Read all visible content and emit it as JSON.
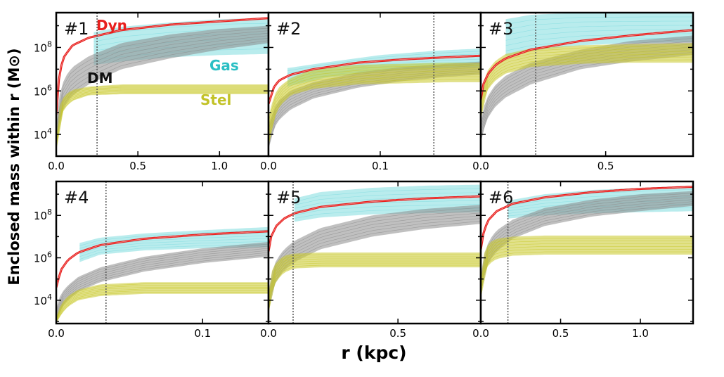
{
  "figure": {
    "ylabel": "Enclosed mass within r (M⊙)",
    "xlabel": "r (kpc)"
  },
  "colors": {
    "dyn": "#e8201e",
    "gas": "#7fdcdf",
    "dm": "#8c8c8c",
    "stel": "#c9c92a",
    "frame": "#000000"
  },
  "legend_labels": {
    "dyn": "Dyn",
    "dm": "DM",
    "gas": "Gas",
    "stel": "Stel"
  },
  "chart_data": [
    {
      "type": "area",
      "label": "#1",
      "log_y": true,
      "xlim": [
        0,
        1.3
      ],
      "ylim": [
        3.0,
        9.6
      ],
      "xticks": [
        0.0,
        0.5,
        1.0
      ],
      "xtick_labels": [
        "0.0",
        "0.5",
        "1.0"
      ],
      "yticks": [
        4,
        6,
        8
      ],
      "ytick_labels": [
        "10^4",
        "10^6",
        "10^8"
      ],
      "vline": 0.25,
      "series": [
        {
          "name": "Dyn",
          "kind": "line",
          "r": [
            0.0,
            0.02,
            0.05,
            0.1,
            0.2,
            0.4,
            0.7,
            1.0,
            1.3
          ],
          "log_m": [
            4.9,
            6.9,
            7.6,
            8.1,
            8.45,
            8.8,
            9.05,
            9.2,
            9.35
          ]
        },
        {
          "name": "Gas",
          "kind": "band",
          "r": [
            0.23,
            0.4,
            0.7,
            1.0,
            1.3
          ],
          "log_lo": [
            7.2,
            7.35,
            7.55,
            7.65,
            7.7
          ],
          "log_hi": [
            8.7,
            8.95,
            9.15,
            9.3,
            9.35
          ]
        },
        {
          "name": "DM",
          "kind": "band",
          "r": [
            0.0,
            0.02,
            0.05,
            0.1,
            0.2,
            0.4,
            0.7,
            1.0,
            1.3
          ],
          "log_lo": [
            3.4,
            4.6,
            5.3,
            5.8,
            6.3,
            7.0,
            7.5,
            7.9,
            8.2
          ],
          "log_hi": [
            4.5,
            5.8,
            6.6,
            7.1,
            7.6,
            8.2,
            8.6,
            8.85,
            9.0
          ]
        },
        {
          "name": "Stel",
          "kind": "band",
          "r": [
            0.0,
            0.02,
            0.05,
            0.1,
            0.2,
            0.4,
            0.7,
            1.0,
            1.3
          ],
          "log_lo": [
            3.2,
            4.6,
            5.2,
            5.55,
            5.8,
            5.85,
            5.85,
            5.85,
            5.85
          ],
          "log_hi": [
            3.8,
            5.3,
            5.8,
            6.05,
            6.2,
            6.3,
            6.3,
            6.3,
            6.3
          ]
        }
      ]
    },
    {
      "type": "area",
      "label": "#2",
      "log_y": true,
      "xlim": [
        0,
        0.19
      ],
      "ylim": [
        3.0,
        9.6
      ],
      "xticks": [
        0.0,
        0.1
      ],
      "xtick_labels": [
        "0.0",
        "0.1"
      ],
      "yticks": [
        4,
        6,
        8
      ],
      "ytick_labels": [
        "",
        "",
        ""
      ],
      "vline": 0.148,
      "series": [
        {
          "name": "Dyn",
          "kind": "line",
          "r": [
            0.0,
            0.005,
            0.01,
            0.02,
            0.04,
            0.08,
            0.12,
            0.16,
            0.19
          ],
          "log_m": [
            5.4,
            6.2,
            6.5,
            6.75,
            7.0,
            7.3,
            7.45,
            7.55,
            7.62
          ]
        },
        {
          "name": "Gas",
          "kind": "band",
          "r": [
            0.017,
            0.05,
            0.1,
            0.15,
            0.19
          ],
          "log_lo": [
            6.2,
            6.6,
            6.9,
            7.05,
            7.1
          ],
          "log_hi": [
            7.05,
            7.3,
            7.65,
            7.85,
            7.95
          ]
        },
        {
          "name": "DM",
          "kind": "band",
          "r": [
            0.0,
            0.005,
            0.01,
            0.02,
            0.04,
            0.08,
            0.12,
            0.16,
            0.19
          ],
          "log_lo": [
            3.3,
            4.3,
            4.7,
            5.15,
            5.65,
            6.15,
            6.45,
            6.65,
            6.75
          ],
          "log_hi": [
            4.4,
            5.2,
            5.6,
            6.0,
            6.4,
            6.85,
            7.1,
            7.25,
            7.35
          ]
        },
        {
          "name": "Stel",
          "kind": "band",
          "r": [
            0.0,
            0.005,
            0.01,
            0.02,
            0.04,
            0.08,
            0.12,
            0.16,
            0.19
          ],
          "log_lo": [
            3.4,
            4.7,
            5.3,
            5.8,
            6.1,
            6.3,
            6.35,
            6.4,
            6.4
          ],
          "log_hi": [
            4.8,
            5.8,
            6.2,
            6.6,
            7.0,
            7.2,
            7.25,
            7.3,
            7.3
          ]
        }
      ]
    },
    {
      "type": "area",
      "label": "#3",
      "log_y": true,
      "xlim": [
        0,
        0.85
      ],
      "ylim": [
        3.0,
        9.6
      ],
      "xticks": [
        0.0,
        0.5
      ],
      "xtick_labels": [
        "0.0",
        "0.5"
      ],
      "yticks": [
        4,
        6,
        8
      ],
      "ytick_labels": [
        "",
        "",
        ""
      ],
      "vline": 0.22,
      "series": [
        {
          "name": "Dyn",
          "kind": "line",
          "r": [
            0.0,
            0.01,
            0.03,
            0.06,
            0.1,
            0.2,
            0.4,
            0.6,
            0.85
          ],
          "log_m": [
            5.6,
            6.3,
            6.8,
            7.2,
            7.5,
            7.9,
            8.3,
            8.55,
            8.8
          ]
        },
        {
          "name": "Gas",
          "kind": "band",
          "r": [
            0.1,
            0.2,
            0.4,
            0.6,
            0.85
          ],
          "log_lo": [
            7.6,
            7.85,
            8.1,
            8.2,
            8.25
          ],
          "log_hi": [
            9.3,
            9.5,
            9.6,
            9.6,
            9.6
          ]
        },
        {
          "name": "DM",
          "kind": "band",
          "r": [
            0.0,
            0.01,
            0.03,
            0.06,
            0.1,
            0.2,
            0.4,
            0.6,
            0.85
          ],
          "log_lo": [
            3.6,
            4.2,
            4.8,
            5.3,
            5.7,
            6.3,
            7.0,
            7.35,
            7.65
          ],
          "log_hi": [
            4.6,
            5.2,
            5.8,
            6.3,
            6.7,
            7.3,
            7.9,
            8.3,
            8.55
          ]
        },
        {
          "name": "Stel",
          "kind": "band",
          "r": [
            0.0,
            0.01,
            0.03,
            0.06,
            0.1,
            0.2,
            0.4,
            0.6,
            0.85
          ],
          "log_lo": [
            4.6,
            5.5,
            6.1,
            6.5,
            6.8,
            7.1,
            7.25,
            7.3,
            7.3
          ],
          "log_hi": [
            5.6,
            6.4,
            7.0,
            7.4,
            7.7,
            7.95,
            8.1,
            8.15,
            8.2
          ]
        }
      ]
    },
    {
      "type": "area",
      "label": "#4",
      "log_y": true,
      "xlim": [
        0,
        0.145
      ],
      "ylim": [
        2.9,
        9.6
      ],
      "xticks": [
        0.0,
        0.1
      ],
      "xtick_labels": [
        "0.0",
        "0.1"
      ],
      "yticks": [
        4,
        6,
        8
      ],
      "ytick_labels": [
        "10^4",
        "10^6",
        "10^8"
      ],
      "vline": 0.034,
      "series": [
        {
          "name": "Dyn",
          "kind": "line",
          "r": [
            0.0,
            0.003,
            0.008,
            0.015,
            0.03,
            0.06,
            0.1,
            0.145
          ],
          "log_m": [
            4.6,
            5.4,
            5.9,
            6.25,
            6.6,
            6.9,
            7.1,
            7.25
          ]
        },
        {
          "name": "Gas",
          "kind": "band",
          "r": [
            0.016,
            0.03,
            0.06,
            0.1,
            0.145
          ],
          "log_lo": [
            5.8,
            6.15,
            6.35,
            6.45,
            6.5
          ],
          "log_hi": [
            6.7,
            6.95,
            7.15,
            7.3,
            7.45
          ]
        },
        {
          "name": "DM",
          "kind": "band",
          "r": [
            0.0,
            0.003,
            0.008,
            0.015,
            0.03,
            0.06,
            0.1,
            0.145
          ],
          "log_lo": [
            2.9,
            3.6,
            4.0,
            4.4,
            4.85,
            5.35,
            5.75,
            6.05
          ],
          "log_hi": [
            3.6,
            4.3,
            4.7,
            5.1,
            5.55,
            6.05,
            6.45,
            6.75
          ]
        },
        {
          "name": "Stel",
          "kind": "band",
          "r": [
            0.0,
            0.003,
            0.008,
            0.015,
            0.03,
            0.06,
            0.1,
            0.145
          ],
          "log_lo": [
            2.9,
            3.3,
            3.7,
            4.0,
            4.2,
            4.3,
            4.3,
            4.3
          ],
          "log_hi": [
            3.2,
            3.8,
            4.2,
            4.5,
            4.75,
            4.85,
            4.85,
            4.85
          ]
        }
      ]
    },
    {
      "type": "area",
      "label": "#5",
      "log_y": true,
      "xlim": [
        0,
        0.82
      ],
      "ylim": [
        2.9,
        9.6
      ],
      "xticks": [
        0.0,
        0.5
      ],
      "xtick_labels": [
        "0.0",
        "0.5"
      ],
      "yticks": [
        4,
        6,
        8
      ],
      "ytick_labels": [
        "",
        "",
        ""
      ],
      "vline": 0.095,
      "series": [
        {
          "name": "Dyn",
          "kind": "line",
          "r": [
            0.0,
            0.01,
            0.03,
            0.06,
            0.1,
            0.2,
            0.4,
            0.6,
            0.82
          ],
          "log_m": [
            6.3,
            7.0,
            7.5,
            7.85,
            8.1,
            8.4,
            8.65,
            8.8,
            8.9
          ]
        },
        {
          "name": "Gas",
          "kind": "band",
          "r": [
            0.1,
            0.2,
            0.4,
            0.6,
            0.82
          ],
          "log_lo": [
            7.7,
            7.9,
            8.05,
            8.1,
            8.15
          ],
          "log_hi": [
            8.8,
            9.1,
            9.3,
            9.4,
            9.45
          ]
        },
        {
          "name": "DM",
          "kind": "band",
          "r": [
            0.0,
            0.01,
            0.03,
            0.06,
            0.1,
            0.2,
            0.4,
            0.6,
            0.82
          ],
          "log_lo": [
            3.4,
            4.2,
            4.9,
            5.4,
            5.8,
            6.4,
            7.0,
            7.35,
            7.6
          ],
          "log_hi": [
            4.4,
            5.2,
            5.9,
            6.4,
            6.8,
            7.4,
            8.0,
            8.3,
            8.5
          ]
        },
        {
          "name": "Stel",
          "kind": "band",
          "r": [
            0.0,
            0.01,
            0.03,
            0.06,
            0.1,
            0.2,
            0.4,
            0.6,
            0.82
          ],
          "log_lo": [
            3.3,
            4.3,
            4.9,
            5.3,
            5.5,
            5.55,
            5.55,
            5.55,
            5.55
          ],
          "log_hi": [
            4.3,
            5.3,
            5.8,
            6.1,
            6.2,
            6.25,
            6.25,
            6.25,
            6.25
          ]
        }
      ]
    },
    {
      "type": "area",
      "label": "#6",
      "log_y": true,
      "xlim": [
        0,
        1.33
      ],
      "ylim": [
        2.9,
        9.6
      ],
      "xticks": [
        0.0,
        0.5,
        1.0
      ],
      "xtick_labels": [
        "0.0",
        "0.5",
        "1.0"
      ],
      "yticks": [
        4,
        6,
        8
      ],
      "ytick_labels": [
        "",
        "",
        ""
      ],
      "vline": 0.17,
      "series": [
        {
          "name": "Dyn",
          "kind": "line",
          "r": [
            0.0,
            0.02,
            0.05,
            0.1,
            0.2,
            0.4,
            0.7,
            1.0,
            1.33
          ],
          "log_m": [
            6.4,
            7.3,
            7.8,
            8.2,
            8.55,
            8.85,
            9.1,
            9.25,
            9.35
          ]
        },
        {
          "name": "Gas",
          "kind": "band",
          "r": [
            0.17,
            0.4,
            0.7,
            1.0,
            1.33
          ],
          "log_lo": [
            7.85,
            8.0,
            8.1,
            8.15,
            8.2
          ],
          "log_hi": [
            8.7,
            9.0,
            9.2,
            9.3,
            9.4
          ]
        },
        {
          "name": "DM",
          "kind": "band",
          "r": [
            0.0,
            0.02,
            0.05,
            0.1,
            0.2,
            0.4,
            0.7,
            1.0,
            1.33
          ],
          "log_lo": [
            4.2,
            5.1,
            5.8,
            6.3,
            6.9,
            7.5,
            7.95,
            8.2,
            8.45
          ],
          "log_hi": [
            5.2,
            6.1,
            6.8,
            7.3,
            7.8,
            8.35,
            8.75,
            9.0,
            9.15
          ]
        },
        {
          "name": "Stel",
          "kind": "band",
          "r": [
            0.0,
            0.02,
            0.05,
            0.1,
            0.2,
            0.4,
            0.7,
            1.0,
            1.33
          ],
          "log_lo": [
            4.0,
            5.2,
            5.7,
            5.95,
            6.1,
            6.15,
            6.15,
            6.15,
            6.15
          ],
          "log_hi": [
            5.0,
            6.2,
            6.7,
            6.9,
            7.0,
            7.05,
            7.05,
            7.05,
            7.05
          ]
        }
      ]
    }
  ]
}
